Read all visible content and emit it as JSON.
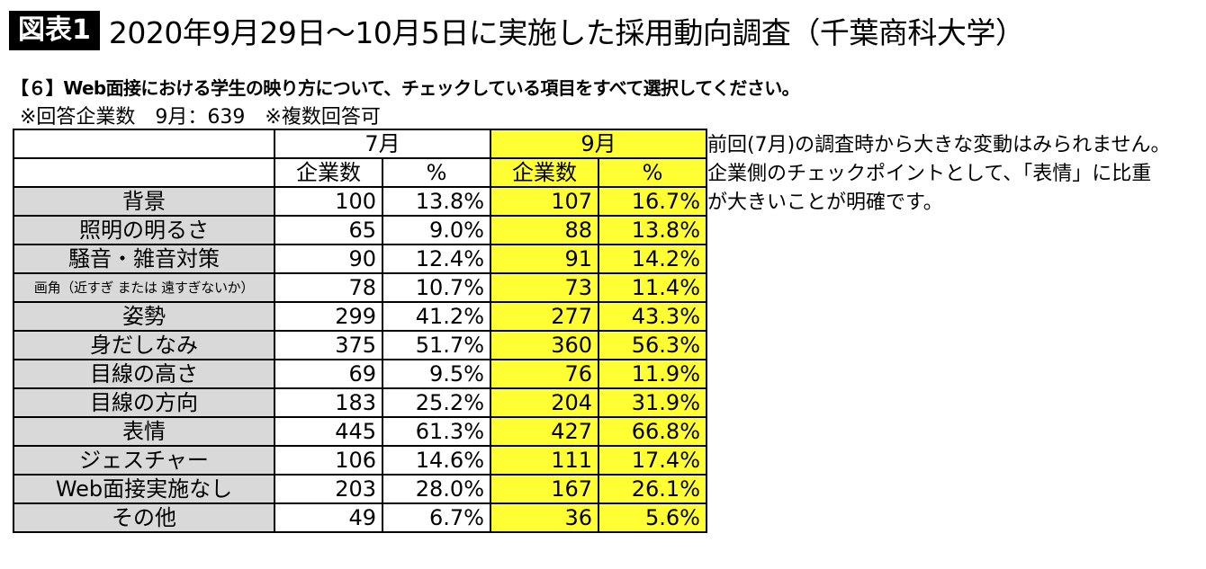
{
  "header": {
    "figure_label": "図表1",
    "title": "2020年9月29日～10月5日に実施した採用動向調査（千葉商科大学）"
  },
  "question": "【６】Web面接における学生の映り方について、チェックしている項目をすべて選択してください。",
  "note": "※回答企業数　9月：639　※複数回答可",
  "table": {
    "group_headers": [
      "7月",
      "9月"
    ],
    "sub_headers": [
      "企業数",
      "%",
      "企業数",
      "%"
    ],
    "rows": [
      {
        "label": "背景",
        "jul_count": "100",
        "jul_pct": "13.8%",
        "sep_count": "107",
        "sep_pct": "16.7%"
      },
      {
        "label": "照明の明るさ",
        "jul_count": "65",
        "jul_pct": "9.0%",
        "sep_count": "88",
        "sep_pct": "13.8%"
      },
      {
        "label": "騒音・雑音対策",
        "jul_count": "90",
        "jul_pct": "12.4%",
        "sep_count": "91",
        "sep_pct": "14.2%"
      },
      {
        "label": "画角（近すぎ または 遠すぎないか）",
        "jul_count": "78",
        "jul_pct": "10.7%",
        "sep_count": "73",
        "sep_pct": "11.4%"
      },
      {
        "label": "姿勢",
        "jul_count": "299",
        "jul_pct": "41.2%",
        "sep_count": "277",
        "sep_pct": "43.3%"
      },
      {
        "label": "身だしなみ",
        "jul_count": "375",
        "jul_pct": "51.7%",
        "sep_count": "360",
        "sep_pct": "56.3%"
      },
      {
        "label": "目線の高さ",
        "jul_count": "69",
        "jul_pct": "9.5%",
        "sep_count": "76",
        "sep_pct": "11.9%"
      },
      {
        "label": "目線の方向",
        "jul_count": "183",
        "jul_pct": "25.2%",
        "sep_count": "204",
        "sep_pct": "31.9%"
      },
      {
        "label": "表情",
        "jul_count": "445",
        "jul_pct": "61.3%",
        "sep_count": "427",
        "sep_pct": "66.8%"
      },
      {
        "label": "ジェスチャー",
        "jul_count": "106",
        "jul_pct": "14.6%",
        "sep_count": "111",
        "sep_pct": "17.4%"
      },
      {
        "label": "Web面接実施なし",
        "jul_count": "203",
        "jul_pct": "28.0%",
        "sep_count": "167",
        "sep_pct": "26.1%"
      },
      {
        "label": "その他",
        "jul_count": "49",
        "jul_pct": "6.7%",
        "sep_count": "36",
        "sep_pct": "5.6%"
      }
    ]
  },
  "comment": {
    "lines": [
      "前回(7月)の調査時から大きな変動はみられません。",
      "企業側のチェックポイントとして、「表情」に比重",
      "が大きいことが明確です。"
    ]
  },
  "colors": {
    "highlight": "#ffff33",
    "label_bg": "#d9d9d9",
    "figure_label_bg": "#000000"
  }
}
